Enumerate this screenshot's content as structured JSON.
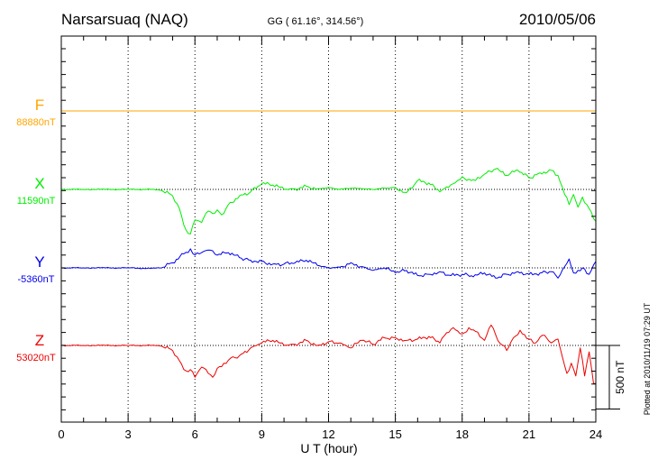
{
  "header": {
    "station": "Narsarsuaq (NAQ)",
    "coords": "GG ( 61.16°, 314.56°)",
    "date": "2010/05/06"
  },
  "plotted_note": "Plotted at 2010/11/19 07:29 UT",
  "colors": {
    "F": "#ffa500",
    "X": "#00ee00",
    "Y": "#0000ee",
    "Z": "#ee0000",
    "axis": "#000000"
  },
  "chart_data": {
    "type": "line",
    "title": "Narsarsuaq (NAQ)",
    "xlabel": "U T (hour)",
    "ylabel": "",
    "xlim": [
      0,
      24
    ],
    "xticks": [
      "0",
      "3",
      "6",
      "9",
      "12",
      "15",
      "18",
      "21",
      "24"
    ],
    "scale_bar": {
      "value_nT": 500,
      "label": "500 nT"
    },
    "units": "nT, relative to baseline",
    "series": [
      {
        "name": "F",
        "baseline_label": "88880nT",
        "x": [
          0,
          24
        ],
        "values": [
          0,
          0
        ]
      },
      {
        "name": "X",
        "baseline_label": "11590nT",
        "x": [
          0,
          1,
          2,
          3,
          4,
          4.5,
          5,
          5.3,
          5.6,
          5.8,
          6,
          6.3,
          6.6,
          6.8,
          7,
          7.2,
          7.5,
          8,
          8.5,
          9,
          9.5,
          10,
          10.5,
          11,
          11.5,
          12,
          12.5,
          13,
          13.5,
          14,
          14.5,
          15,
          15.5,
          16,
          16.5,
          17,
          17.3,
          17.6,
          18,
          18.3,
          18.6,
          19,
          19.5,
          20,
          20.5,
          21,
          21.5,
          22,
          22.3,
          22.6,
          22.8,
          23,
          23.2,
          23.4,
          23.7,
          24
        ],
        "values": [
          0,
          0,
          0,
          0,
          0,
          -8,
          -50,
          -150,
          -320,
          -350,
          -240,
          -260,
          -170,
          -190,
          -160,
          -200,
          -120,
          -50,
          -20,
          45,
          35,
          0,
          5,
          25,
          5,
          15,
          0,
          10,
          5,
          0,
          10,
          15,
          -25,
          70,
          50,
          -20,
          20,
          45,
          100,
          80,
          70,
          120,
          160,
          110,
          150,
          90,
          130,
          150,
          110,
          -40,
          -120,
          -40,
          -140,
          -60,
          -150,
          -250
        ]
      },
      {
        "name": "Y",
        "baseline_label": "-5360nT",
        "x": [
          0,
          1,
          2,
          3,
          4,
          4.5,
          5,
          5.5,
          5.8,
          6,
          6.3,
          6.6,
          7,
          7.5,
          8,
          8.5,
          9,
          9.5,
          10,
          10.5,
          11,
          11.5,
          12,
          12.5,
          13,
          13.5,
          14,
          14.5,
          15,
          15.5,
          16,
          16.5,
          17,
          17.5,
          18,
          18.5,
          19,
          19.5,
          20,
          20.5,
          21,
          21.5,
          22,
          22.3,
          22.6,
          22.8,
          23,
          23.4,
          23.7,
          24
        ],
        "values": [
          0,
          0,
          0,
          0,
          -5,
          0,
          40,
          110,
          150,
          100,
          120,
          140,
          100,
          120,
          80,
          60,
          50,
          30,
          30,
          40,
          60,
          20,
          0,
          5,
          40,
          10,
          -20,
          0,
          -40,
          -20,
          -60,
          -50,
          -30,
          -60,
          -50,
          -70,
          -40,
          -80,
          -50,
          -30,
          -50,
          -40,
          -30,
          -80,
          10,
          70,
          -40,
          0,
          -50,
          50
        ]
      },
      {
        "name": "Z",
        "baseline_label": "53020nT",
        "x": [
          0,
          1,
          2,
          3,
          4,
          4.5,
          5,
          5.3,
          5.6,
          5.8,
          6,
          6.3,
          6.6,
          6.8,
          7,
          7.3,
          7.6,
          8,
          8.5,
          9,
          9.5,
          10,
          10.5,
          11,
          11.5,
          12,
          12.5,
          13,
          13.5,
          14,
          14.5,
          15,
          15.5,
          16,
          16.5,
          17,
          17.3,
          17.6,
          18,
          18.3,
          18.6,
          19,
          19.3,
          19.6,
          20,
          20.3,
          20.6,
          21,
          21.3,
          21.6,
          22,
          22.3,
          22.5,
          22.7,
          22.9,
          23.1,
          23.3,
          23.5,
          23.7,
          23.9,
          24
        ],
        "values": [
          0,
          0,
          0,
          0,
          0,
          -5,
          -40,
          -120,
          -200,
          -190,
          -250,
          -170,
          -220,
          -250,
          -180,
          -140,
          -100,
          -80,
          -20,
          20,
          40,
          0,
          10,
          40,
          0,
          30,
          20,
          -20,
          40,
          10,
          60,
          60,
          40,
          50,
          70,
          20,
          100,
          140,
          90,
          140,
          110,
          40,
          160,
          40,
          -40,
          60,
          120,
          50,
          20,
          80,
          20,
          50,
          -90,
          -220,
          -140,
          -240,
          -20,
          -240,
          -50,
          -300,
          -300
        ]
      }
    ]
  }
}
